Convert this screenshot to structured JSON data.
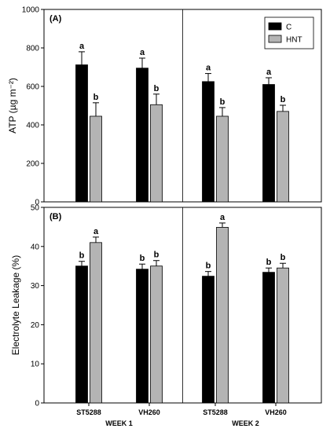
{
  "chart_data": [
    {
      "type": "bar",
      "panel_label": "(A)",
      "ylabel": "ATP (µg m⁻²)",
      "ylim": [
        0,
        1000
      ],
      "yticks": [
        0,
        200,
        400,
        600,
        800,
        1000
      ],
      "categories": [
        "ST5288",
        "VH260",
        "ST5288",
        "VH260"
      ],
      "groups": [
        {
          "label": "WEEK 1",
          "span": [
            0,
            1
          ]
        },
        {
          "label": "WEEK 2",
          "span": [
            2,
            3
          ]
        }
      ],
      "series": [
        {
          "name": "C",
          "color": "#000000",
          "values": [
            712,
            695,
            625,
            610
          ],
          "errors": [
            68,
            52,
            42,
            35
          ],
          "letters": [
            "a",
            "a",
            "a",
            "a"
          ]
        },
        {
          "name": "HNT",
          "color": "#b4b4b4",
          "values": [
            445,
            505,
            445,
            470
          ],
          "errors": [
            70,
            55,
            45,
            32
          ],
          "letters": [
            "b",
            "b",
            "b",
            "b"
          ]
        }
      ],
      "legend": "top-right",
      "week_divider": true
    },
    {
      "type": "bar",
      "panel_label": "(B)",
      "ylabel": "Electrolyte Leakage (%)",
      "ylim": [
        0,
        50
      ],
      "yticks": [
        0,
        10,
        20,
        30,
        40,
        50
      ],
      "categories": [
        "ST5288",
        "VH260",
        "ST5288",
        "VH260"
      ],
      "groups": [
        {
          "label": "WEEK 1",
          "span": [
            0,
            1
          ]
        },
        {
          "label": "WEEK 2",
          "span": [
            2,
            3
          ]
        }
      ],
      "series": [
        {
          "name": "C",
          "color": "#000000",
          "values": [
            35.0,
            34.2,
            32.4,
            33.4
          ],
          "errors": [
            1.2,
            1.3,
            1.2,
            1.1
          ],
          "letters": [
            "b",
            "b",
            "b",
            "b"
          ]
        },
        {
          "name": "HNT",
          "color": "#b4b4b4",
          "values": [
            41.0,
            35.0,
            44.9,
            34.5
          ],
          "errors": [
            1.4,
            1.4,
            1.1,
            1.2
          ],
          "letters": [
            "a",
            "b",
            "a",
            "b"
          ]
        }
      ],
      "week_divider": true
    }
  ]
}
